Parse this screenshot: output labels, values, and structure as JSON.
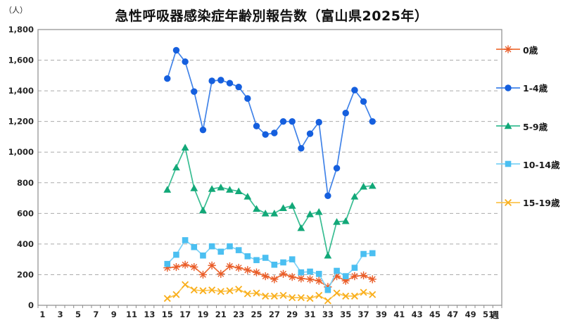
{
  "chart_data": {
    "type": "line",
    "title": "急性呼吸器感染症年齢別報告数（富山県2025年）",
    "y_axis_unit": "（人）",
    "x_axis_unit": "週",
    "ylim": [
      0,
      1800
    ],
    "y_tick_step": 200,
    "y_tick_labels": [
      "0",
      "200",
      "400",
      "600",
      "800",
      "1,000",
      "1,200",
      "1,400",
      "1,600",
      "1,800"
    ],
    "x_range_weeks": [
      1,
      52
    ],
    "x_tick_labels": [
      "1",
      "3",
      "5",
      "7",
      "9",
      "11",
      "13",
      "15",
      "17",
      "19",
      "21",
      "23",
      "25",
      "27",
      "29",
      "31",
      "33",
      "35",
      "37",
      "39",
      "41",
      "43",
      "45",
      "47",
      "49",
      "51"
    ],
    "grid": "horizontal-dashed",
    "legend_position": "right",
    "weeks": [
      15,
      16,
      17,
      18,
      19,
      20,
      21,
      22,
      23,
      24,
      25,
      26,
      27,
      28,
      29,
      30,
      31,
      32,
      33,
      34,
      35,
      36,
      37,
      38
    ],
    "series": [
      {
        "name": "0歳",
        "marker": "asterisk",
        "color": "#E95C28",
        "line_color": "#EE7038",
        "values": [
          245,
          250,
          265,
          250,
          200,
          260,
          205,
          255,
          245,
          230,
          215,
          190,
          170,
          205,
          185,
          175,
          170,
          160,
          120,
          190,
          160,
          190,
          195,
          170
        ]
      },
      {
        "name": "1-4歳",
        "marker": "circle",
        "color": "#155FDE",
        "line_color": "#4183E8",
        "values": [
          1480,
          1665,
          1590,
          1395,
          1145,
          1465,
          1470,
          1450,
          1425,
          1350,
          1170,
          1115,
          1125,
          1200,
          1200,
          1025,
          1120,
          1195,
          715,
          895,
          1255,
          1405,
          1330,
          1200
        ]
      },
      {
        "name": "5-9歳",
        "marker": "triangle",
        "color": "#12A878",
        "line_color": "#38BD92",
        "values": [
          755,
          900,
          1030,
          765,
          620,
          760,
          770,
          755,
          745,
          710,
          630,
          600,
          600,
          635,
          650,
          505,
          595,
          610,
          325,
          545,
          550,
          710,
          775,
          780
        ]
      },
      {
        "name": "10-14歳",
        "marker": "square",
        "color": "#4BBFF1",
        "line_color": "#7DD2F6",
        "values": [
          270,
          330,
          425,
          380,
          325,
          385,
          350,
          385,
          360,
          320,
          295,
          310,
          265,
          280,
          300,
          215,
          220,
          205,
          100,
          225,
          190,
          245,
          335,
          340
        ]
      },
      {
        "name": "15-19歳",
        "marker": "x",
        "color": "#F9AE1B",
        "line_color": "#FBC44E",
        "values": [
          45,
          70,
          135,
          100,
          95,
          100,
          90,
          95,
          105,
          75,
          80,
          60,
          60,
          65,
          50,
          50,
          45,
          65,
          30,
          80,
          60,
          60,
          85,
          70
        ]
      }
    ],
    "axis_color": "#8c8c8c",
    "grid_color": "#ababab",
    "label_color": "#262626"
  }
}
